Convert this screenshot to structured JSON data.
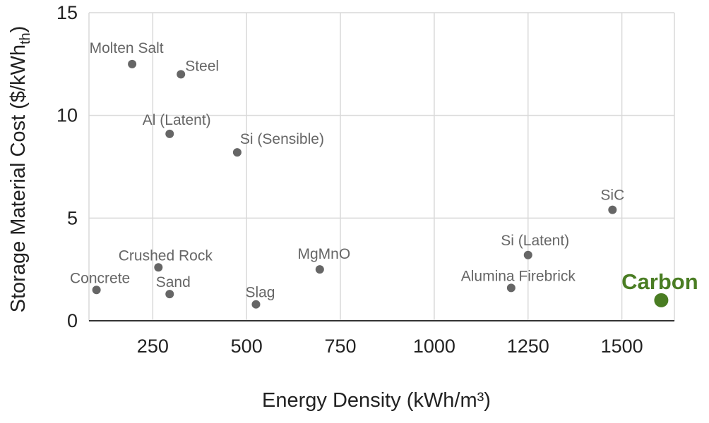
{
  "chart_data": {
    "type": "scatter",
    "xlabel": "Energy Density (kWh/m³)",
    "ylabel": "Storage Material Cost ($/kWh",
    "ylabel_sub": "th",
    "ylabel_end": ")",
    "xlim": [
      80,
      1640
    ],
    "ylim": [
      0,
      15
    ],
    "x_ticks": [
      250,
      500,
      750,
      1000,
      1250,
      1500
    ],
    "x_tick_labels": [
      "250",
      "500",
      "750",
      "1000",
      "1250",
      "1500"
    ],
    "y_ticks": [
      0,
      5,
      10,
      15
    ],
    "y_tick_labels": [
      "0",
      "5",
      "10",
      "15"
    ],
    "grid": true,
    "legend": "none",
    "colors": {
      "point": "#666666",
      "highlight": "#4a7d23",
      "grid": "#d9d9d9",
      "text": "#222222"
    },
    "points": [
      {
        "name": "Molten Salt",
        "x": 195,
        "y": 12.5
      },
      {
        "name": "Steel",
        "x": 325,
        "y": 12.0
      },
      {
        "name": "Al (Latent)",
        "x": 295,
        "y": 9.1
      },
      {
        "name": "Si (Sensible)",
        "x": 475,
        "y": 8.2
      },
      {
        "name": "SiC",
        "x": 1475,
        "y": 5.4
      },
      {
        "name": "Crushed Rock",
        "x": 265,
        "y": 2.6
      },
      {
        "name": "Concrete",
        "x": 100,
        "y": 1.5
      },
      {
        "name": "Sand",
        "x": 295,
        "y": 1.3
      },
      {
        "name": "Slag",
        "x": 525,
        "y": 0.8
      },
      {
        "name": "MgMnO",
        "x": 695,
        "y": 2.5
      },
      {
        "name": "Si (Latent)",
        "x": 1250,
        "y": 3.2
      },
      {
        "name": "Alumina Firebrick",
        "x": 1205,
        "y": 1.6
      },
      {
        "name": "Carbon",
        "x": 1605,
        "y": 1.0,
        "highlight": true
      }
    ]
  }
}
